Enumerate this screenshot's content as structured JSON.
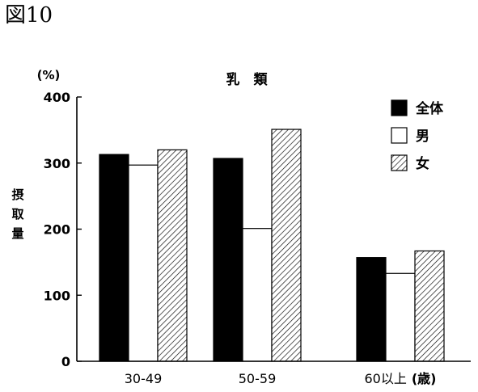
{
  "figure_label": "図10",
  "chart_data": {
    "type": "bar",
    "title": "乳　類",
    "ylabel": "摂取量",
    "yunit": "(%)",
    "xunit": "(歳)",
    "ylim": [
      0,
      400
    ],
    "yticks": [
      0,
      100,
      200,
      300,
      400
    ],
    "grid": false,
    "legend_position": "top-right",
    "categories": [
      "30-49",
      "50-59",
      "60以上"
    ],
    "series": [
      {
        "name": "全体",
        "values": [
          313,
          307,
          157
        ],
        "fill": "solid",
        "color": "#000000"
      },
      {
        "name": "男",
        "values": [
          297,
          201,
          133
        ],
        "fill": "none",
        "color": "#ffffff"
      },
      {
        "name": "女",
        "values": [
          320,
          351,
          167
        ],
        "fill": "hatch",
        "color": "#000000"
      }
    ]
  }
}
